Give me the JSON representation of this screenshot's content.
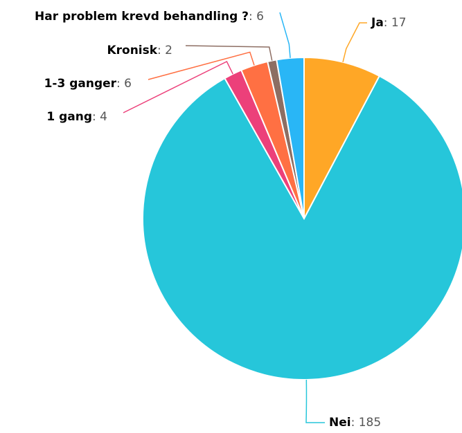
{
  "chart_data": {
    "type": "pie",
    "title": "",
    "slices": [
      {
        "label": "Ja",
        "value": 17,
        "color": "#ffa726"
      },
      {
        "label": "Nei",
        "value": 185,
        "color": "#26c6da"
      },
      {
        "label": "1 gang",
        "value": 4,
        "color": "#ec407a"
      },
      {
        "label": "1-3 ganger",
        "value": 6,
        "color": "#ff7043"
      },
      {
        "label": "Kronisk",
        "value": 2,
        "color": "#8d6e63"
      },
      {
        "label": "Har problem krevd behandling ?",
        "value": 6,
        "color": "#29b6f6"
      }
    ]
  }
}
